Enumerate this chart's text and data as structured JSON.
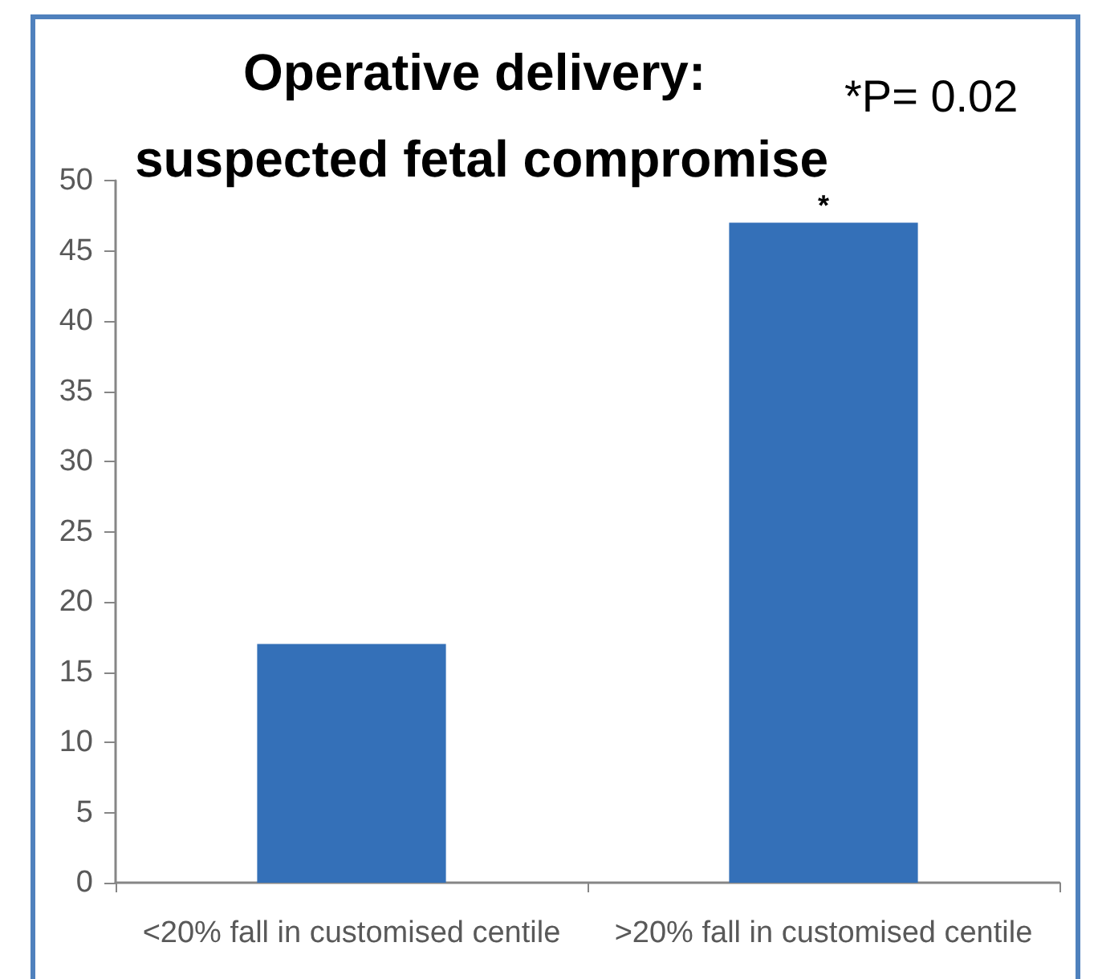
{
  "chart_data": {
    "type": "bar",
    "title": "Operative delivery: suspected fetal compromise",
    "categories": [
      "<20% fall in customised centile",
      ">20% fall in customised centile"
    ],
    "values": [
      17,
      47
    ],
    "color": "#3470b8",
    "ylim": [
      0,
      50
    ],
    "yticks": [
      0,
      5,
      10,
      15,
      20,
      25,
      30,
      35,
      40,
      45,
      50
    ],
    "annotations": [
      "*P= 0.02",
      "*"
    ]
  }
}
